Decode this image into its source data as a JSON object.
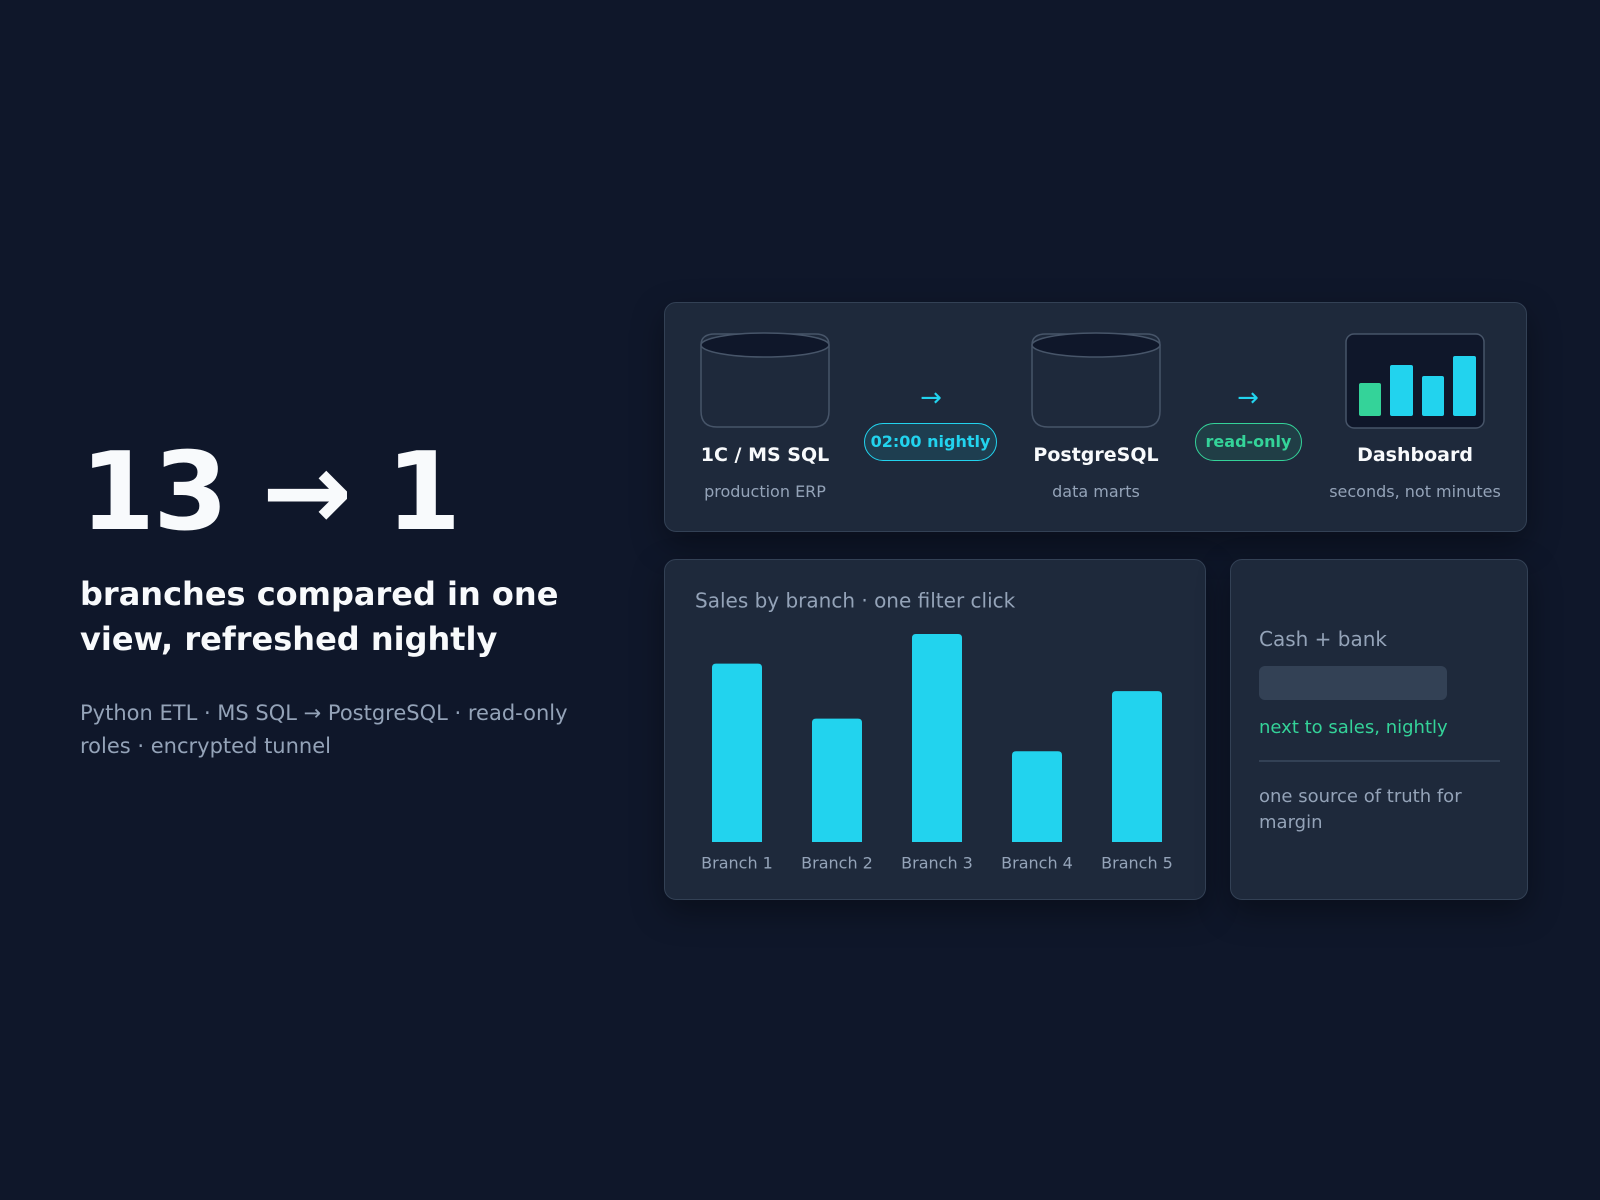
{
  "hero": {
    "metric": "13 → 1",
    "headline": "branches compared in one view, refreshed nightly",
    "subtitle": "Python ETL · MS SQL → PostgreSQL · read-only roles · encrypted tunnel"
  },
  "pipeline": {
    "nodes": [
      {
        "label": "1C / MS SQL",
        "sublabel": "production ERP"
      },
      {
        "label": "PostgreSQL",
        "sublabel": "data marts"
      },
      {
        "label": "Dashboard",
        "sublabel": "seconds, not minutes"
      }
    ],
    "arrows": [
      "→",
      "→"
    ],
    "badges": [
      "02:00 nightly",
      "read-only"
    ]
  },
  "chart_data": {
    "type": "bar",
    "title": "Sales by branch · one filter click",
    "categories": [
      "Branch 1",
      "Branch 2",
      "Branch 3",
      "Branch 4",
      "Branch 5"
    ],
    "values": [
      175,
      121,
      204,
      89,
      148
    ],
    "color": "#22d3ee"
  },
  "cash_card": {
    "title": "Cash + bank",
    "note": "next to sales, nightly",
    "footer": "one source of truth for margin"
  }
}
